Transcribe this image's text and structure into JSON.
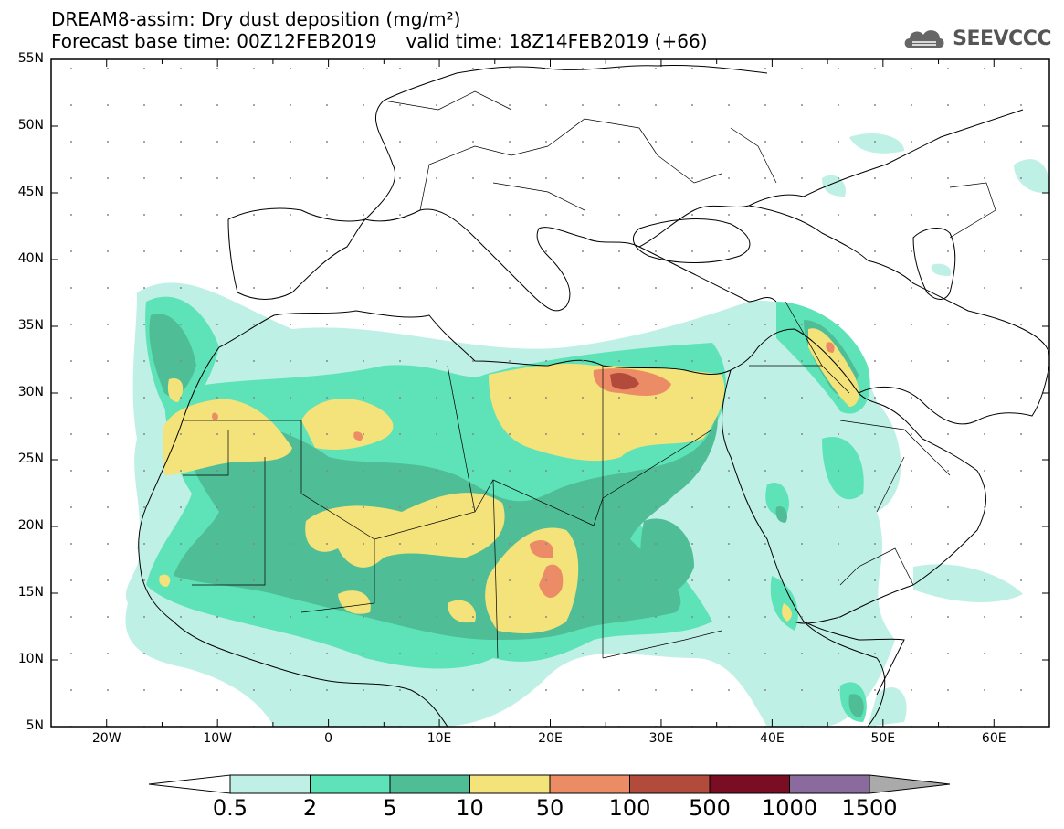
{
  "title_line1": "DREAM8-assim: Dry dust deposition (mg/m²)",
  "title_line2": "Forecast base time: 00Z12FEB2019     valid time: 18Z14FEB2019 (+66)",
  "logo": {
    "text": "SEEVCCC",
    "icon": "cloud-logo-icon"
  },
  "map": {
    "lon_range": [
      -25,
      65
    ],
    "lat_range": [
      5,
      55
    ],
    "lat_ticks": [
      "55N",
      "50N",
      "45N",
      "40N",
      "35N",
      "30N",
      "25N",
      "20N",
      "15N",
      "10N",
      "5N"
    ],
    "lon_ticks": [
      "20W",
      "10W",
      "0",
      "10E",
      "20E",
      "30E",
      "40E",
      "50E",
      "60E"
    ],
    "lon_tick_values": [
      -20,
      -10,
      0,
      10,
      20,
      30,
      40,
      50,
      60
    ],
    "lat_tick_values": [
      55,
      50,
      45,
      40,
      35,
      30,
      25,
      20,
      15,
      10,
      5
    ]
  },
  "colorbar": {
    "labels": [
      "0.5",
      "2",
      "5",
      "10",
      "50",
      "100",
      "500",
      "1000",
      "1500"
    ],
    "colors": [
      "#bff0e6",
      "#5ee3b8",
      "#4fbe96",
      "#f4e27a",
      "#ec8c66",
      "#b34b3d",
      "#7a0d23",
      "#8b6b9e"
    ],
    "under_color": "#ffffff",
    "over_color": "#aaaaaa"
  },
  "deposition_colors": {
    "lev1": "#bff0e6",
    "lev2": "#5ee3b8",
    "lev3": "#4fbe96",
    "lev4": "#f4e27a",
    "lev5": "#ec8c66",
    "lev6": "#b34b3d"
  }
}
